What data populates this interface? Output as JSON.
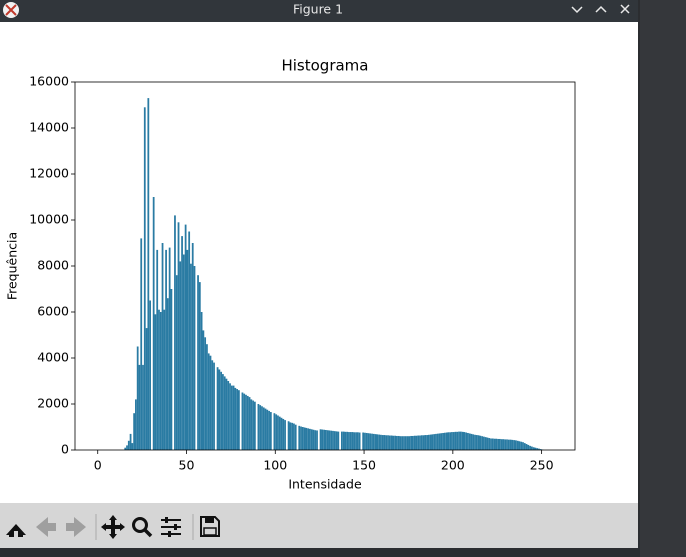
{
  "window": {
    "title": "Figure 1"
  },
  "chart_data": {
    "type": "histogram",
    "title": "Histograma",
    "x_label": "Intensidade",
    "y_label": "Frequência",
    "color": "#2a7ba3",
    "bins": [
      0,
      1,
      2,
      3,
      4,
      5,
      6,
      7,
      8,
      9,
      10,
      11,
      12,
      13,
      14,
      15,
      16,
      17,
      18,
      19,
      20,
      21,
      22,
      23,
      24,
      25,
      26,
      27,
      28,
      29,
      30,
      31,
      32,
      33,
      34,
      35,
      36,
      37,
      38,
      39,
      40,
      41,
      42,
      43,
      44,
      45,
      46,
      47,
      48,
      49,
      50,
      51,
      52,
      53,
      54,
      55,
      56,
      57,
      58,
      59,
      60,
      61,
      62,
      63,
      64,
      65,
      66,
      67,
      68,
      69,
      70,
      71,
      72,
      73,
      74,
      75,
      76,
      77,
      78,
      79,
      80,
      81,
      82,
      83,
      84,
      85,
      86,
      87,
      88,
      89,
      90,
      91,
      92,
      93,
      94,
      95,
      96,
      97,
      98,
      99,
      100,
      101,
      102,
      103,
      104,
      105,
      106,
      107,
      108,
      109,
      110,
      111,
      112,
      113,
      114,
      115,
      116,
      117,
      118,
      119,
      120,
      121,
      122,
      123,
      124,
      125,
      126,
      127,
      128,
      129,
      130,
      131,
      132,
      133,
      134,
      135,
      136,
      137,
      138,
      139,
      140,
      141,
      142,
      143,
      144,
      145,
      146,
      147,
      148,
      149,
      150,
      151,
      152,
      153,
      154,
      155,
      156,
      157,
      158,
      159,
      160,
      161,
      162,
      163,
      164,
      165,
      166,
      167,
      168,
      169,
      170,
      171,
      172,
      173,
      174,
      175,
      176,
      177,
      178,
      179,
      180,
      181,
      182,
      183,
      184,
      185,
      186,
      187,
      188,
      189,
      190,
      191,
      192,
      193,
      194,
      195,
      196,
      197,
      198,
      199,
      200,
      201,
      202,
      203,
      204,
      205,
      206,
      207,
      208,
      209,
      210,
      211,
      212,
      213,
      214,
      215,
      216,
      217,
      218,
      219,
      220,
      221,
      222,
      223,
      224,
      225,
      226,
      227,
      228,
      229,
      230,
      231,
      232,
      233,
      234,
      235,
      236,
      237,
      238,
      239,
      240,
      241,
      242,
      243,
      244,
      245,
      246,
      247,
      248,
      249,
      250,
      251,
      252,
      253,
      254,
      255,
      256
    ],
    "values": [
      0,
      0,
      0,
      0,
      0,
      0,
      0,
      0,
      0,
      0,
      0,
      0,
      0,
      0,
      0,
      100,
      200,
      400,
      700,
      300,
      1600,
      2200,
      4500,
      3700,
      9200,
      3700,
      14900,
      5300,
      15300,
      6500,
      0,
      11000,
      5900,
      8700,
      6100,
      6000,
      9000,
      6100,
      8700,
      6600,
      8800,
      7000,
      0,
      10200,
      7600,
      9900,
      8200,
      9300,
      8500,
      9800,
      8700,
      9500,
      8100,
      9000,
      8000,
      0,
      7600,
      7300,
      6000,
      5200,
      4900,
      4600,
      4200,
      4100,
      3900,
      3800,
      0,
      3600,
      3500,
      3400,
      3300,
      3200,
      3100,
      3000,
      2900,
      2800,
      2800,
      2700,
      2650,
      2600,
      0,
      2500,
      2450,
      2400,
      2350,
      2300,
      2200,
      2150,
      2100,
      0,
      2000,
      1950,
      1900,
      1850,
      1800,
      1750,
      1700,
      1650,
      0,
      1600,
      1550,
      1500,
      1450,
      1400,
      1350,
      1300,
      0,
      1250,
      1200,
      1180,
      1150,
      1100,
      0,
      1050,
      1020,
      1000,
      980,
      960,
      940,
      920,
      900,
      880,
      860,
      850,
      0,
      900,
      890,
      880,
      870,
      860,
      850,
      840,
      830,
      820,
      810,
      800,
      0,
      800,
      800,
      790,
      790,
      780,
      780,
      780,
      770,
      770,
      770,
      760,
      0,
      760,
      750,
      740,
      730,
      720,
      710,
      700,
      690,
      680,
      670,
      660,
      650,
      650,
      640,
      640,
      630,
      630,
      620,
      620,
      610,
      610,
      600,
      600,
      600,
      600,
      600,
      600,
      610,
      610,
      620,
      620,
      630,
      630,
      640,
      640,
      650,
      650,
      660,
      670,
      680,
      690,
      700,
      710,
      720,
      730,
      740,
      750,
      760,
      770,
      770,
      780,
      780,
      790,
      790,
      800,
      800,
      790,
      780,
      760,
      740,
      720,
      700,
      680,
      660,
      650,
      640,
      620,
      600,
      580,
      560,
      540,
      520,
      500,
      500,
      490,
      490,
      480,
      480,
      470,
      470,
      460,
      460,
      450,
      450,
      440,
      430,
      420,
      400,
      380,
      360,
      340,
      300,
      260,
      220,
      180,
      150,
      120,
      100,
      80,
      60,
      40,
      20,
      0,
      0,
      0,
      0,
      0
    ],
    "xlim": [
      -12.8,
      268.8
    ],
    "xticks": [
      0,
      50,
      100,
      150,
      200,
      250
    ],
    "ylim": [
      0,
      16000
    ],
    "yticks": [
      0,
      2000,
      4000,
      6000,
      8000,
      10000,
      12000,
      14000,
      16000
    ]
  }
}
